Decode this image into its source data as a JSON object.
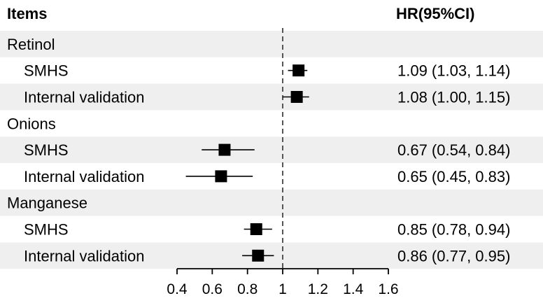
{
  "chart_data": {
    "type": "forest",
    "headers": {
      "items": "Items",
      "hr": "HR(95%CI)"
    },
    "reference_value": 1,
    "xlim": [
      0.4,
      1.6
    ],
    "xticks": [
      "0.4",
      "0.6",
      "0.8",
      "1",
      "1.2",
      "1.4",
      "1.6"
    ],
    "groups": [
      {
        "label": "Retinol",
        "rows": [
          {
            "label": "SMHS",
            "hr": 1.09,
            "lo": 1.03,
            "hi": 1.14,
            "text": "1.09 (1.03, 1.14)"
          },
          {
            "label": "Internal validation",
            "hr": 1.08,
            "lo": 1.0,
            "hi": 1.15,
            "text": "1.08 (1.00, 1.15)"
          }
        ]
      },
      {
        "label": "Onions",
        "rows": [
          {
            "label": "SMHS",
            "hr": 0.67,
            "lo": 0.54,
            "hi": 0.84,
            "text": "0.67 (0.54, 0.84)"
          },
          {
            "label": "Internal validation",
            "hr": 0.65,
            "lo": 0.45,
            "hi": 0.83,
            "text": "0.65 (0.45, 0.83)"
          }
        ]
      },
      {
        "label": "Manganese",
        "rows": [
          {
            "label": "SMHS",
            "hr": 0.85,
            "lo": 0.78,
            "hi": 0.94,
            "text": "0.85 (0.78, 0.94)"
          },
          {
            "label": "Internal validation",
            "hr": 0.86,
            "lo": 0.77,
            "hi": 0.95,
            "text": "0.86 (0.77, 0.95)"
          }
        ]
      }
    ],
    "colors": {
      "band": "#efefef",
      "marker": "#000000"
    }
  }
}
